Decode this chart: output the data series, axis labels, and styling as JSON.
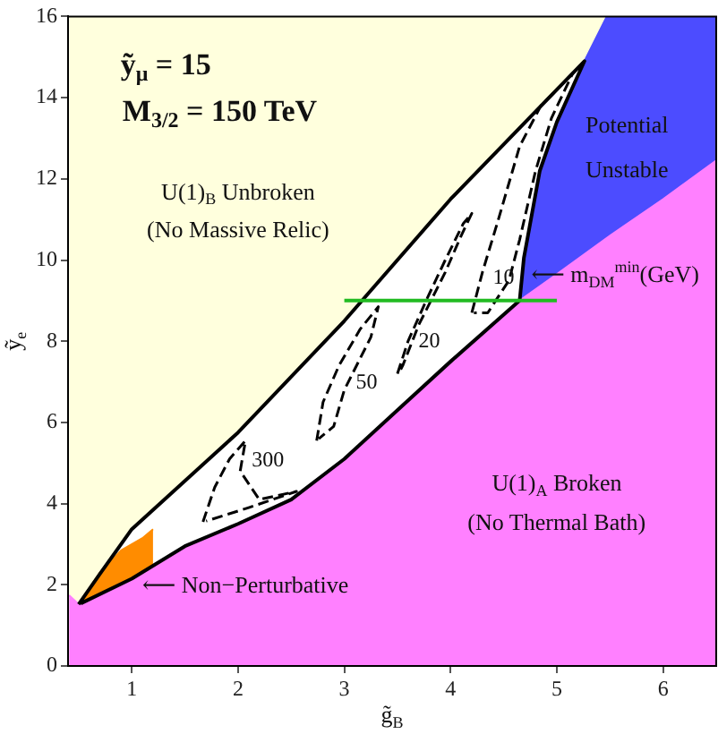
{
  "chart_data": {
    "type": "line",
    "xlabel": "g̃$_{B}$",
    "ylabel": "ỹ$_{e}$",
    "xlim": [
      0.4,
      6.5
    ],
    "ylim": [
      0,
      16
    ],
    "xticks": [
      1,
      2,
      3,
      4,
      5,
      6
    ],
    "yticks": [
      0,
      2,
      4,
      6,
      8,
      10,
      12,
      14,
      16
    ],
    "grid": false,
    "marker": "none",
    "series": [
      {
        "type": "area",
        "color": "#ffffdd",
        "x": [
          0.41,
          6.5
        ],
        "values": [
          16,
          16
        ]
      },
      {
        "type": "area",
        "color": "#ffffff",
        "x": [
          0.5,
          0.7,
          1,
          2,
          3,
          4,
          5,
          5.26
        ],
        "values": [
          1.52,
          2.27,
          3.37,
          5.75,
          8.5,
          11.5,
          14.2,
          14.9
        ]
      },
      {
        "type": "area",
        "color": "#4c4cff",
        "x": [
          4.65,
          4.69,
          4.84,
          5.0,
          5.26,
          5.47,
          6.5
        ],
        "values": [
          9.0,
          10.05,
          12.2,
          13.4,
          14.9,
          16,
          16
        ]
      },
      {
        "type": "area",
        "color": "#ff8c00",
        "x": [
          0.5,
          0.7,
          0.9,
          1.1,
          1.2
        ],
        "values": [
          1.52,
          2.3,
          2.85,
          3.15,
          3.37
        ]
      },
      {
        "type": "area",
        "color": "#ff80ff",
        "x": [
          0.41,
          0.5,
          1,
          1.5,
          2,
          2.5,
          3,
          3.5,
          4,
          4.65,
          5,
          5.5,
          6,
          6.5
        ],
        "values": [
          1.74,
          1.52,
          2.15,
          2.95,
          3.5,
          4.1,
          5.1,
          6.3,
          7.5,
          9.0,
          9.65,
          10.6,
          11.5,
          12.45
        ]
      },
      {
        "type": "line",
        "color": "#000000",
        "line_style": "solid",
        "x": [
          0.5,
          0.7,
          1,
          2,
          3,
          4,
          5,
          5.26,
          5.0,
          4.84,
          4.69,
          4.65,
          4,
          3.5,
          3,
          2.5,
          2,
          1.5,
          1,
          0.52
        ],
        "values": [
          1.52,
          2.27,
          3.37,
          5.75,
          8.5,
          11.5,
          14.2,
          14.9,
          13.4,
          12.2,
          10.05,
          9.0,
          7.5,
          6.3,
          5.1,
          4.1,
          3.5,
          2.95,
          2.15,
          1.54
        ]
      },
      {
        "type": "line",
        "name": "300",
        "color": "#000000",
        "line_style": "dashed",
        "x": [
          1.67,
          1.78,
          1.92,
          2.07,
          2.02,
          2.2,
          2.55,
          2.1,
          1.7
        ],
        "values": [
          3.55,
          4.4,
          5.1,
          5.55,
          4.8,
          4.1,
          4.3,
          3.9,
          3.57
        ]
      },
      {
        "type": "line",
        "name": "50",
        "color": "#000000",
        "line_style": "dashed",
        "x": [
          2.74,
          2.8,
          2.95,
          3.15,
          3.32,
          3.25,
          3.0,
          2.9,
          2.76
        ],
        "values": [
          5.55,
          6.5,
          7.4,
          8.3,
          8.85,
          8.1,
          6.8,
          5.9,
          5.6
        ]
      },
      {
        "type": "line",
        "name": "20",
        "color": "#000000",
        "line_style": "dashed",
        "x": [
          3.5,
          3.6,
          3.77,
          3.95,
          4.12,
          4.2,
          4.1,
          3.95,
          3.7,
          3.55,
          3.52
        ],
        "values": [
          7.2,
          8.0,
          9.0,
          10.0,
          10.9,
          11.15,
          10.6,
          9.7,
          8.4,
          7.4,
          7.25
        ]
      },
      {
        "type": "line",
        "name": "10",
        "color": "#000000",
        "line_style": "dashed",
        "x": [
          4.2,
          4.3,
          4.45,
          4.65,
          4.85,
          5.15,
          4.95,
          4.8,
          4.65,
          4.55,
          4.35,
          4.22
        ],
        "values": [
          8.7,
          9.7,
          11.0,
          12.8,
          13.8,
          14.6,
          13.5,
          12.2,
          10.5,
          9.5,
          8.7,
          8.7
        ]
      },
      {
        "type": "line",
        "color": "#22bb22",
        "line_style": "solid",
        "x": [
          3,
          5
        ],
        "values": [
          9,
          9
        ]
      }
    ],
    "annotations": [
      "ỹ$_{μ}$ = 15",
      "M$_{3/2}$ = 150 TeV",
      "U(1)$_{B}$ Unbroken",
      "(No Massive Relic)",
      "Potential",
      "Unstable",
      "⟵ m$_{DM}$$^{min}$(GeV)",
      "U(1)$_{A}$ Broken",
      "(No Thermal Bath)",
      "⟵ Non−Perturbative"
    ]
  }
}
